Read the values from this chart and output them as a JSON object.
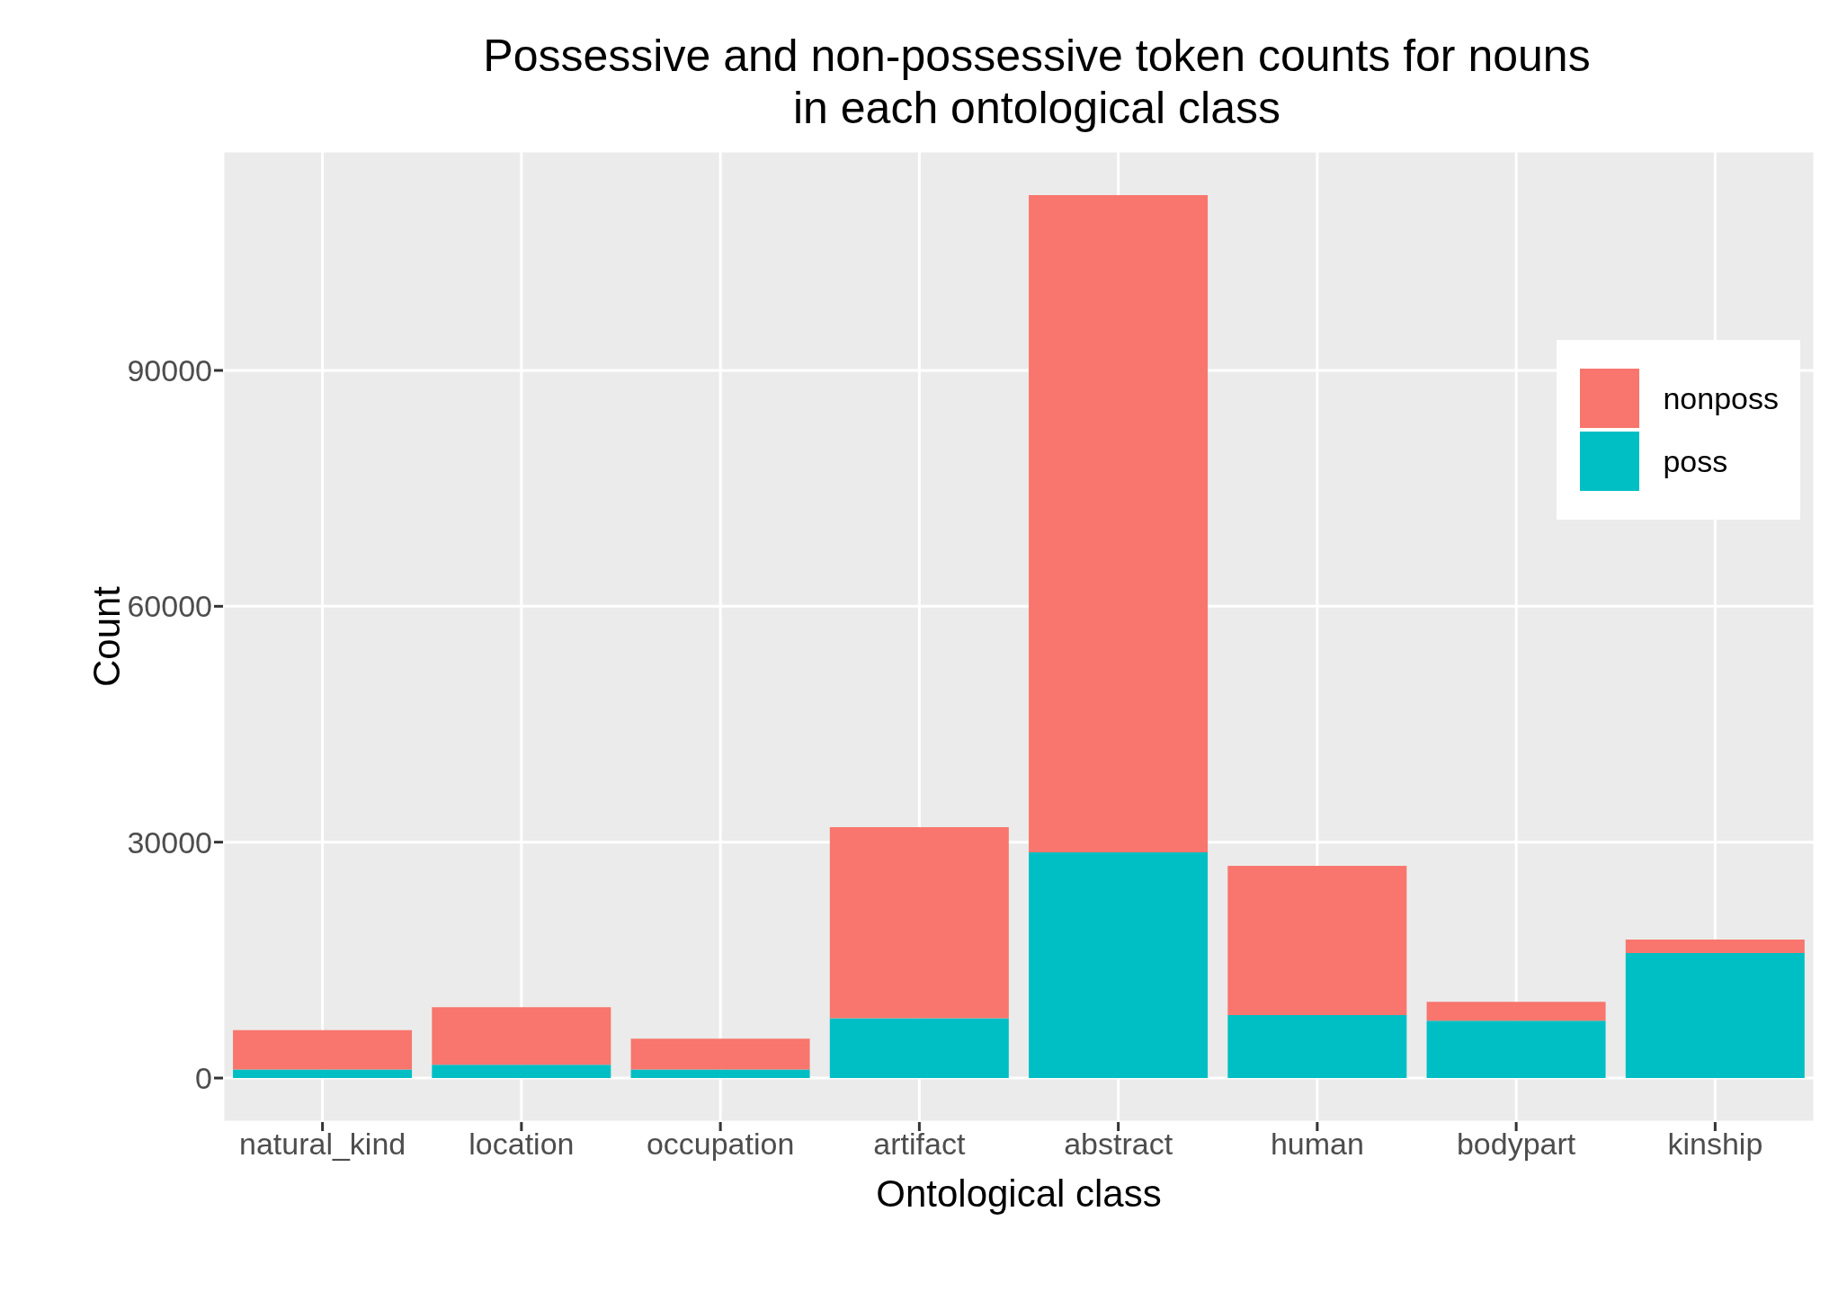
{
  "chart_data": {
    "type": "bar",
    "title": "Possessive and non-possessive token counts for nouns in each ontological class",
    "xlabel": "Ontological class",
    "ylabel": "Count",
    "categories": [
      "natural_kind",
      "location",
      "occupation",
      "artifact",
      "abstract",
      "human",
      "bodypart",
      "kinship"
    ],
    "series": [
      {
        "name": "poss",
        "color": "#00bfc4",
        "values": [
          1100,
          1700,
          1100,
          7600,
          28700,
          8000,
          7300,
          15900
        ]
      },
      {
        "name": "nonposs",
        "color": "#f8766d",
        "values": [
          5000,
          7300,
          3900,
          24300,
          83600,
          19000,
          2400,
          1700
        ]
      }
    ],
    "stacked": true,
    "ylim": [
      -5600,
      117900
    ],
    "yticks": [
      0,
      30000,
      60000,
      90000
    ],
    "grid": true,
    "legend": "top right"
  }
}
